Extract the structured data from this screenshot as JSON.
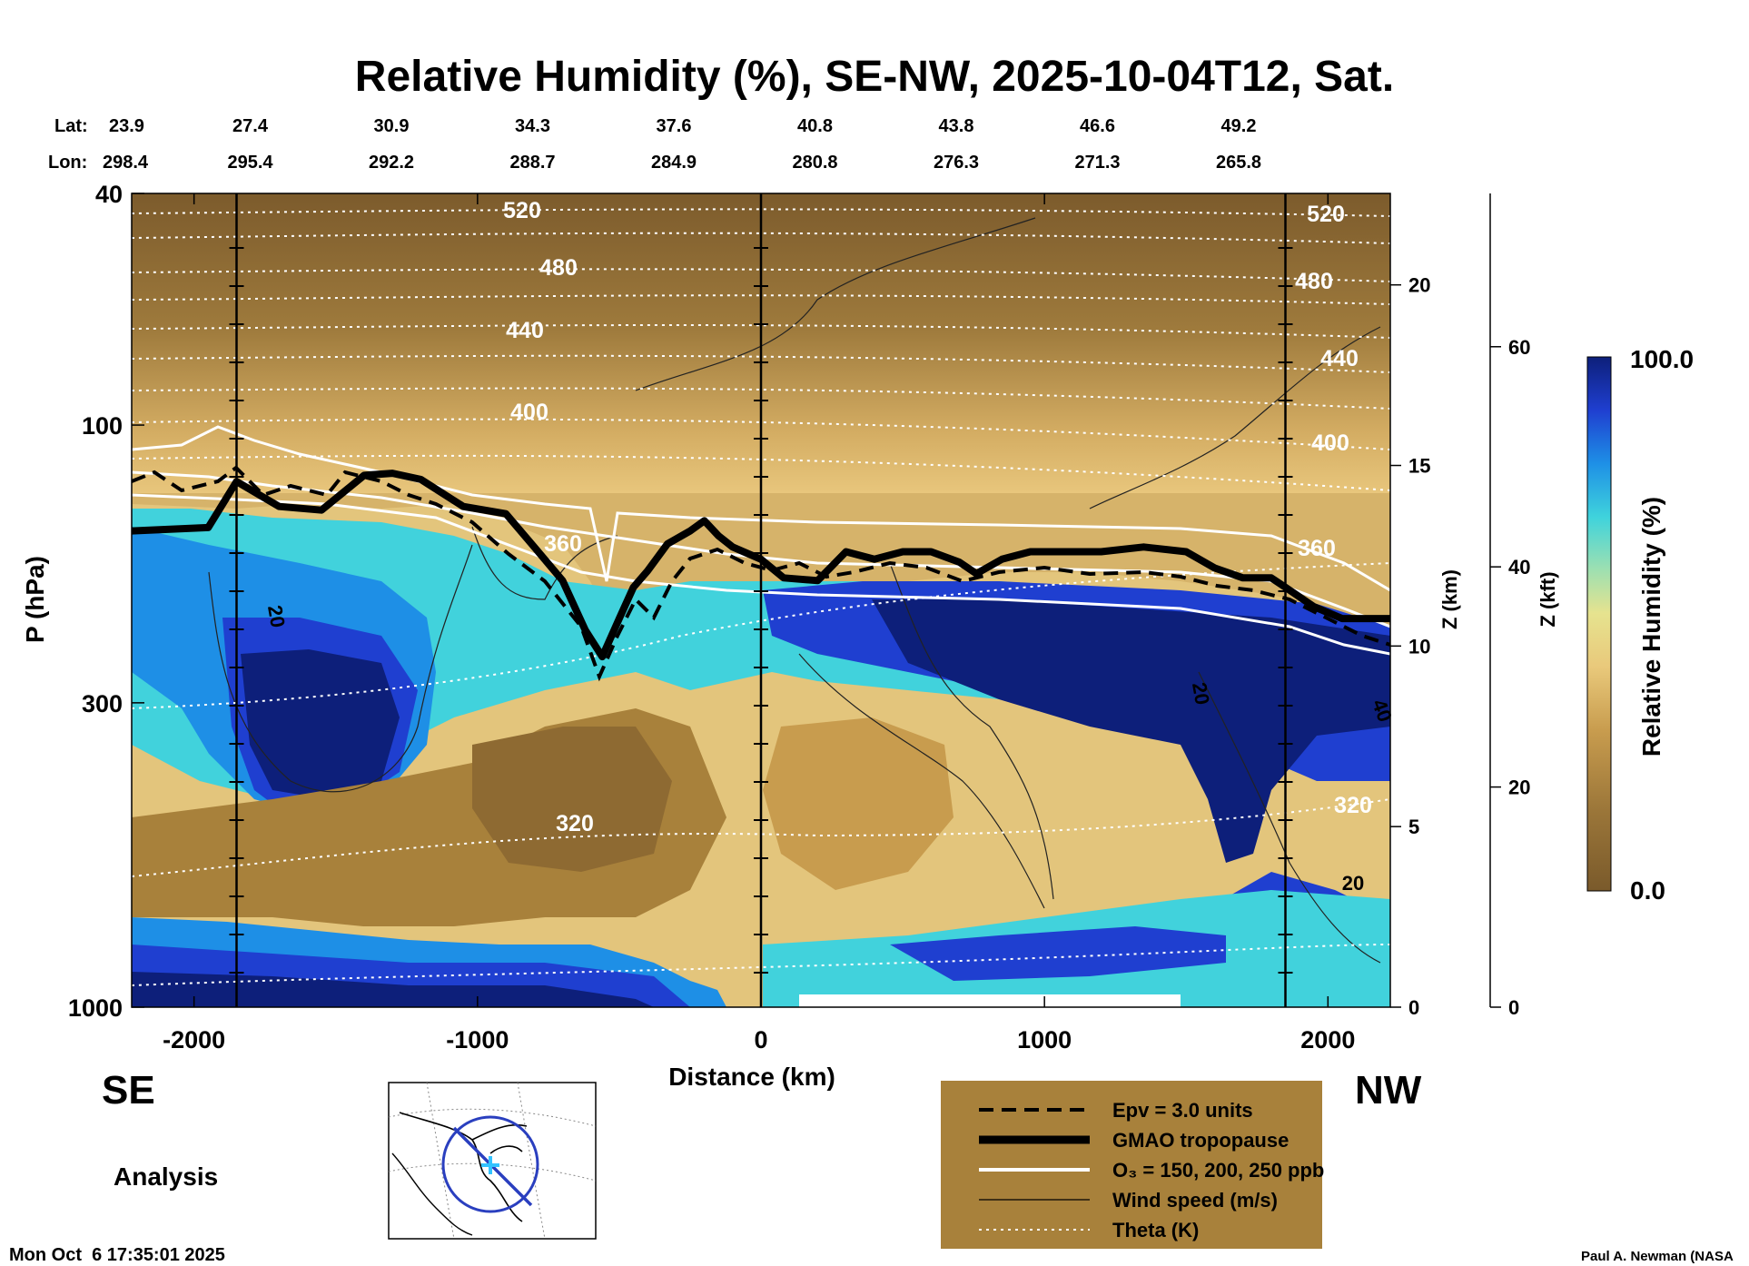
{
  "title": "Relative Humidity (%), SE-NW, 2025-10-04T12, Sat.",
  "header": {
    "lat_label": "Lat:",
    "lon_label": "Lon:",
    "lat_values": [
      "23.9",
      "27.4",
      "30.9",
      "34.3",
      "37.6",
      "40.8",
      "43.8",
      "46.6",
      "49.2"
    ],
    "lon_values": [
      "298.4",
      "295.4",
      "292.2",
      "288.7",
      "284.9",
      "280.8",
      "276.3",
      "271.3",
      "265.8"
    ]
  },
  "chart_data": {
    "type": "heatmap",
    "title": "Relative Humidity (%), SE-NW, 2025-10-04T12, Sat.",
    "xlabel": "Distance (km)",
    "ylabel": "P (hPa)",
    "xlim": [
      -2220,
      2220
    ],
    "ylim": [
      1000,
      40
    ],
    "y_scale": "log",
    "x_ticks": [
      -2000,
      -1000,
      0,
      1000,
      2000
    ],
    "y_ticks": [
      40,
      100,
      300,
      1000
    ],
    "z_km_label": "Z (km)",
    "z_km_ticks": [
      0,
      5,
      10,
      15,
      20
    ],
    "z_kft_label": "Z (kft)",
    "z_kft_ticks": [
      0,
      20,
      40,
      60
    ],
    "colorbar": {
      "label": "Relative Humidity (%)",
      "min": 0.0,
      "max": 100.0,
      "min_label": "0.0",
      "max_label": "100.0"
    },
    "vertical_markers_km": [
      -1850,
      0,
      1850
    ],
    "direction_left": "SE",
    "direction_right": "NW",
    "theta_levels_K": [
      320,
      360,
      400,
      440,
      480,
      520
    ],
    "wind_speed_labels": [
      "20",
      "20",
      "20",
      "40"
    ],
    "tropopause_hPa": {
      "x": [
        -2220,
        -1950,
        -1850,
        -1700,
        -1550,
        -1400,
        -1300,
        -1200,
        -1050,
        -900,
        -800,
        -700,
        -620,
        -560,
        -500,
        -450,
        -400,
        -330,
        -250,
        -200,
        -150,
        -100,
        0,
        80,
        200,
        300,
        400,
        500,
        600,
        700,
        760,
        850,
        950,
        1050,
        1200,
        1350,
        1500,
        1600,
        1700,
        1800,
        1850,
        1950,
        2050,
        2220
      ],
      "p": [
        152,
        150,
        125,
        138,
        140,
        122,
        121,
        124,
        138,
        142,
        162,
        185,
        225,
        250,
        215,
        190,
        178,
        160,
        152,
        146,
        155,
        162,
        170,
        183,
        185,
        165,
        170,
        165,
        165,
        172,
        180,
        170,
        165,
        165,
        165,
        162,
        165,
        176,
        183,
        183,
        190,
        205,
        215,
        215
      ]
    },
    "ozone_contours_ppb": [
      150,
      200,
      250
    ],
    "epv_contour_units": 3.0
  },
  "legend": {
    "items": [
      {
        "label": "Epv = 3.0 units",
        "style": "dashed-thick"
      },
      {
        "label": "GMAO tropopause",
        "style": "solid-heavy"
      },
      {
        "label": "O₃ = 150, 200, 250 ppb",
        "style": "solid-white"
      },
      {
        "label": "Wind speed (m/s)",
        "style": "solid-thin"
      },
      {
        "label": "Theta (K)",
        "style": "dotted-white"
      }
    ],
    "bg_color": "#a8813b"
  },
  "footer": {
    "analysis": "Analysis",
    "timestamp": "Mon Oct  6 17:35:01 2025",
    "credit": "Paul A. Newman (NASA"
  },
  "colors": {
    "dry_brown": "#7a5a2b",
    "tan": "#d9b56e",
    "yellow": "#e9d98a",
    "cyan": "#33d6e0",
    "blue": "#1f4fd6",
    "navy": "#0d1f7a"
  }
}
